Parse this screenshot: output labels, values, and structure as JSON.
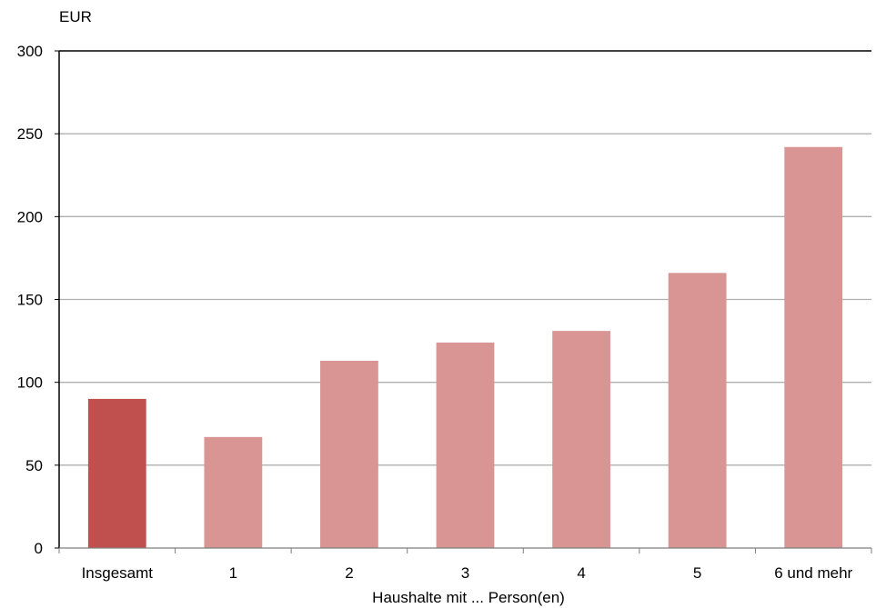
{
  "chart_data": {
    "type": "bar",
    "title": "",
    "ylabel": "EUR",
    "xlabel": "Haushalte mit ... Person(en)",
    "ylim": [
      0,
      300
    ],
    "yticks": [
      0,
      50,
      100,
      150,
      200,
      250,
      300
    ],
    "grid": true,
    "categories": [
      "Insgesamt",
      "1",
      "2",
      "3",
      "4",
      "5",
      "6 und mehr"
    ],
    "values": [
      90,
      67,
      113,
      124,
      131,
      166,
      242
    ],
    "colors": {
      "highlight": "#c0504d",
      "default": "#d99594",
      "axis": "#000000",
      "grid": "#b0b0b0"
    },
    "highlight_index": 0
  }
}
